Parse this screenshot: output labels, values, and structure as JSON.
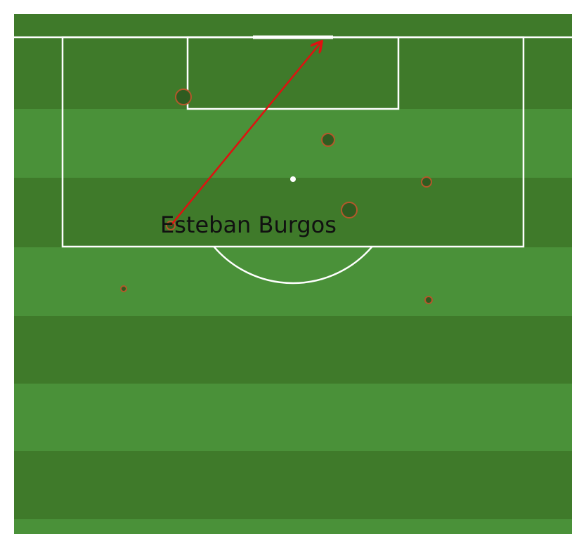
{
  "player": {
    "name": "Esteban Burgos"
  }
}
